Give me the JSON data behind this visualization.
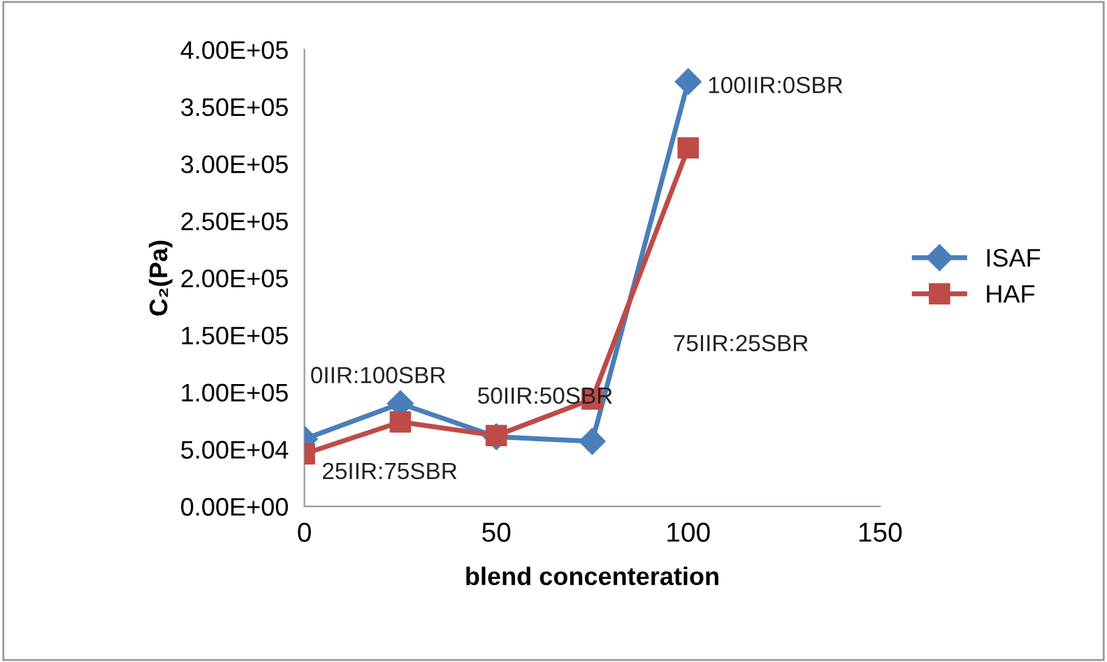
{
  "chart_data": {
    "type": "line",
    "xlabel": "blend concenteration",
    "ylabel": "C₂(Pa)",
    "x": [
      0,
      25,
      50,
      75,
      100
    ],
    "series": [
      {
        "name": "ISAF",
        "color": "#4a7ebb",
        "marker": "diamond",
        "values": [
          59000,
          90000,
          61000,
          57000,
          372000
        ]
      },
      {
        "name": "HAF",
        "color": "#be4b48",
        "marker": "square",
        "values": [
          46000,
          74000,
          62000,
          94000,
          314000
        ]
      }
    ],
    "xlim": [
      0,
      150
    ],
    "xticks": [
      0,
      50,
      100,
      150
    ],
    "ylim": [
      0,
      400000
    ],
    "yticks": [
      {
        "value": 0,
        "label": "0.00E+00"
      },
      {
        "value": 50000,
        "label": "5.00E+04"
      },
      {
        "value": 100000,
        "label": "1.00E+05"
      },
      {
        "value": 150000,
        "label": "1.50E+05"
      },
      {
        "value": 200000,
        "label": "2.00E+05"
      },
      {
        "value": 250000,
        "label": "2.50E+05"
      },
      {
        "value": 300000,
        "label": "3.00E+05"
      },
      {
        "value": 350000,
        "label": "3.50E+05"
      },
      {
        "value": 400000,
        "label": "4.00E+05"
      }
    ],
    "annotations": [
      "0IIR:100SBR",
      "25IIR:75SBR",
      "50IIR:50SBR",
      "75IIR:25SBR",
      "100IIR:0SBR"
    ],
    "grid": false,
    "legend": "right",
    "line_style": "solid"
  }
}
